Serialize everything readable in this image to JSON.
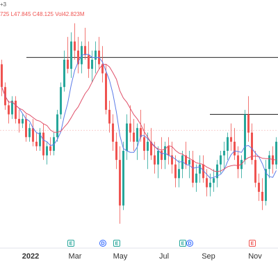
{
  "legend": {
    "corner_mark": "+3",
    "value_1": "725",
    "low": "L47.845",
    "close": "C48.125",
    "volume": "Vol42.823M"
  },
  "axis": {
    "labels": [
      "2022",
      "Mar",
      "May",
      "Jul",
      "Sep",
      "Nov"
    ],
    "bold_label": "2022"
  },
  "events": [
    {
      "letter": "E",
      "kind": "earnings"
    },
    {
      "letter": "D",
      "kind": "dividend"
    },
    {
      "letter": "E",
      "kind": "earnings"
    },
    {
      "letter": "E",
      "kind": "earnings"
    },
    {
      "letter": "D",
      "kind": "dividend"
    },
    {
      "letter": "E",
      "kind": "earnings-upcoming"
    }
  ],
  "colors": {
    "up": "#26a69a",
    "down": "#ef5350",
    "ma_fast": "#5b7be8",
    "ma_slow": "#e0506a",
    "level_line": "#222222",
    "ref_line": "#f4a6a6",
    "event_green": "#26a69a",
    "event_blue": "#2962ff",
    "event_red": "#ef5350"
  },
  "chart_data": {
    "type": "candlestick",
    "title": "",
    "x_labels": [
      "2022",
      "Mar",
      "May",
      "Jul",
      "Sep",
      "Nov"
    ],
    "series": [
      {
        "kind": "ohlc",
        "values": [
          [
            57,
            58,
            50,
            52
          ],
          [
            52,
            53,
            47,
            48
          ],
          [
            48,
            49,
            44,
            46
          ],
          [
            46,
            50,
            45,
            49
          ],
          [
            49,
            50,
            44,
            45
          ],
          [
            45,
            47,
            42,
            44
          ],
          [
            44,
            46,
            43,
            45
          ],
          [
            45,
            46,
            40,
            41
          ],
          [
            41,
            44,
            40,
            43
          ],
          [
            43,
            45,
            39,
            40
          ],
          [
            40,
            42,
            38,
            39
          ],
          [
            39,
            43,
            38,
            42
          ],
          [
            42,
            44,
            36,
            37
          ],
          [
            37,
            40,
            35,
            39
          ],
          [
            39,
            41,
            37,
            38
          ],
          [
            38,
            42,
            37,
            41
          ],
          [
            41,
            47,
            40,
            46
          ],
          [
            46,
            53,
            45,
            52
          ],
          [
            52,
            60,
            51,
            58
          ],
          [
            58,
            63,
            55,
            56
          ],
          [
            56,
            64,
            54,
            62
          ],
          [
            62,
            66,
            58,
            60
          ],
          [
            60,
            63,
            55,
            57
          ],
          [
            57,
            62,
            55,
            61
          ],
          [
            61,
            65,
            58,
            59
          ],
          [
            59,
            62,
            54,
            56
          ],
          [
            56,
            60,
            53,
            58
          ],
          [
            58,
            62,
            55,
            60
          ],
          [
            60,
            63,
            56,
            57
          ],
          [
            57,
            61,
            53,
            55
          ],
          [
            55,
            57,
            46,
            47
          ],
          [
            47,
            49,
            42,
            44
          ],
          [
            44,
            46,
            38,
            40
          ],
          [
            40,
            42,
            34,
            36
          ],
          [
            36,
            39,
            22,
            26
          ],
          [
            26,
            40,
            25,
            38
          ],
          [
            38,
            46,
            36,
            44
          ],
          [
            44,
            48,
            40,
            42
          ],
          [
            42,
            45,
            38,
            40
          ],
          [
            40,
            44,
            36,
            43
          ],
          [
            43,
            47,
            40,
            41
          ],
          [
            41,
            44,
            36,
            38
          ],
          [
            38,
            42,
            34,
            40
          ],
          [
            40,
            43,
            36,
            37
          ],
          [
            37,
            40,
            33,
            35
          ],
          [
            35,
            39,
            32,
            38
          ],
          [
            38,
            41,
            34,
            36
          ],
          [
            36,
            40,
            34,
            39
          ],
          [
            39,
            41,
            35,
            37
          ],
          [
            37,
            40,
            33,
            35
          ],
          [
            35,
            37,
            30,
            32
          ],
          [
            32,
            36,
            30,
            34
          ],
          [
            34,
            38,
            32,
            37
          ],
          [
            37,
            40,
            34,
            35
          ],
          [
            35,
            38,
            32,
            36
          ],
          [
            36,
            38,
            30,
            31
          ],
          [
            31,
            35,
            29,
            33
          ],
          [
            33,
            37,
            31,
            35
          ],
          [
            35,
            37,
            31,
            32
          ],
          [
            32,
            34,
            28,
            30
          ],
          [
            30,
            33,
            28,
            31
          ],
          [
            31,
            34,
            29,
            32
          ],
          [
            32,
            36,
            30,
            35
          ],
          [
            35,
            38,
            33,
            37
          ],
          [
            37,
            40,
            34,
            38
          ],
          [
            38,
            42,
            36,
            41
          ],
          [
            41,
            44,
            38,
            40
          ],
          [
            40,
            43,
            36,
            37
          ],
          [
            37,
            39,
            32,
            34
          ],
          [
            34,
            37,
            32,
            36
          ],
          [
            36,
            47,
            35,
            46
          ],
          [
            46,
            50,
            40,
            42
          ],
          [
            42,
            44,
            35,
            36
          ],
          [
            36,
            38,
            30,
            31
          ],
          [
            31,
            33,
            27,
            29
          ],
          [
            29,
            32,
            25,
            27
          ],
          [
            27,
            36,
            26,
            34
          ],
          [
            34,
            38,
            32,
            37
          ],
          [
            37,
            39,
            33,
            35
          ],
          [
            35,
            41,
            34,
            40
          ]
        ]
      },
      {
        "name": "",
        "kind": "ma_fast"
      },
      {
        "name": "",
        "kind": "ma_slow"
      }
    ],
    "horizontal_levels": [
      58.5,
      46.0
    ],
    "reference_level": 42.5
  }
}
